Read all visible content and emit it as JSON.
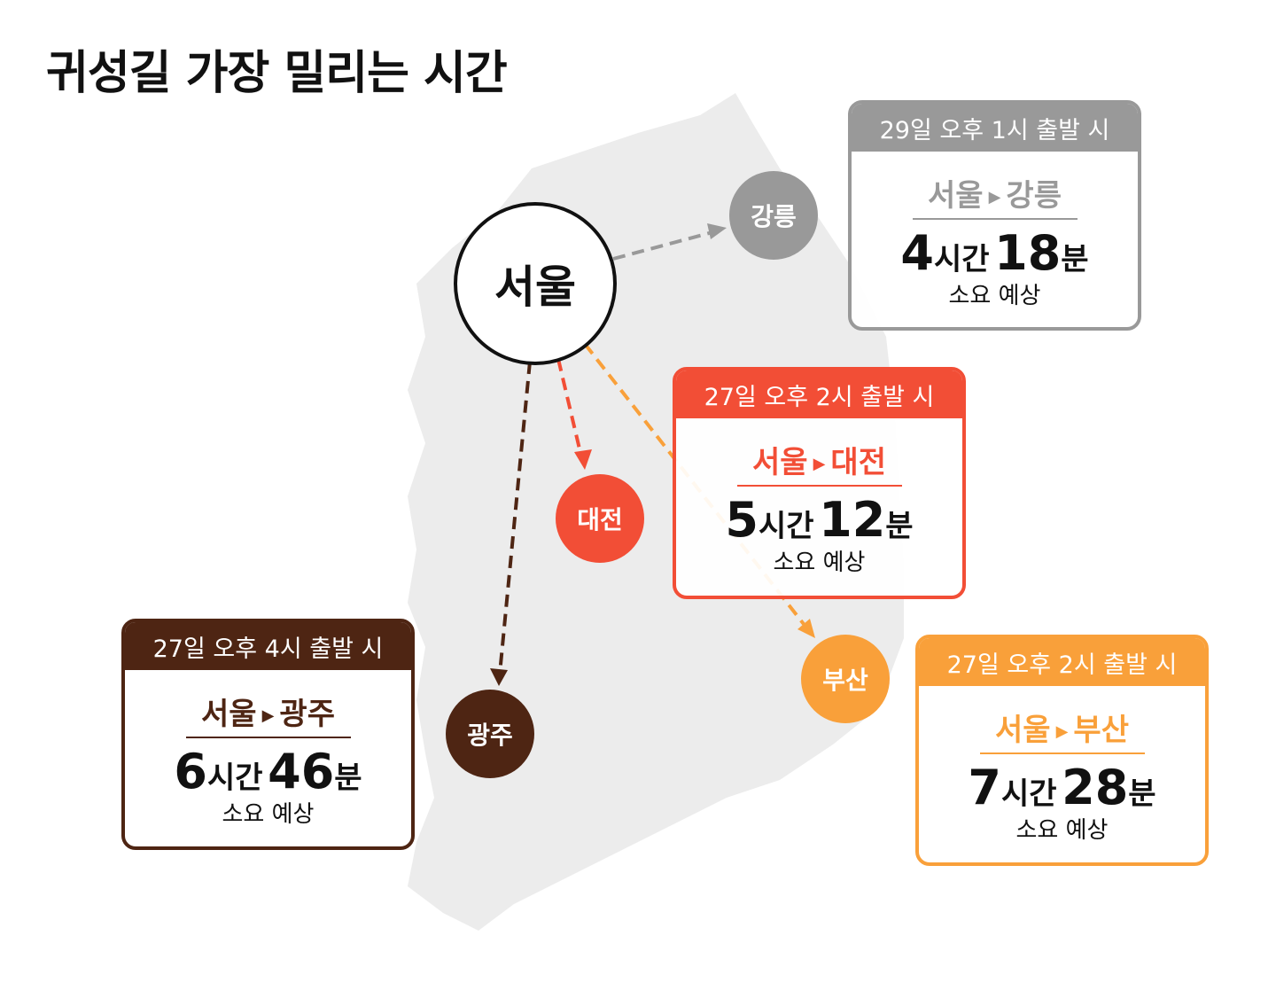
{
  "title": "귀성길 가장 밀리는 시간",
  "colors": {
    "gangneung": "#999999",
    "daejeon": "#f24e36",
    "gwangju": "#4e2513",
    "busan": "#f9a03a",
    "map": "#ececec"
  },
  "origin": "서울",
  "routes": [
    {
      "id": "gangneung",
      "dest": "강릉",
      "departure": "29일 오후 1시 출발 시",
      "from": "서울",
      "to": "강릉",
      "hours": "4",
      "hour_unit": "시간",
      "minutes": "18",
      "minute_unit": "분",
      "note": "소요 예상"
    },
    {
      "id": "daejeon",
      "dest": "대전",
      "departure": "27일 오후 2시 출발 시",
      "from": "서울",
      "to": "대전",
      "hours": "5",
      "hour_unit": "시간",
      "minutes": "12",
      "minute_unit": "분",
      "note": "소요 예상"
    },
    {
      "id": "gwangju",
      "dest": "광주",
      "departure": "27일 오후 4시 출발 시",
      "from": "서울",
      "to": "광주",
      "hours": "6",
      "hour_unit": "시간",
      "minutes": "46",
      "minute_unit": "분",
      "note": "소요 예상"
    },
    {
      "id": "busan",
      "dest": "부산",
      "departure": "27일 오후 2시 출발 시",
      "from": "서울",
      "to": "부산",
      "hours": "7",
      "hour_unit": "시간",
      "minutes": "28",
      "minute_unit": "분",
      "note": "소요 예상"
    }
  ]
}
